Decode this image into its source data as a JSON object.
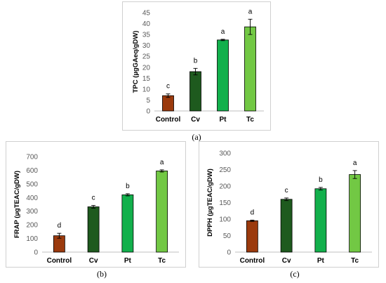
{
  "captions": [
    "(a)",
    "(b)",
    "(c)"
  ],
  "colors": {
    "Control": "#9b3a0d",
    "Cv": "#1e5a1e",
    "Pt": "#12b04c",
    "Tc": "#72c844",
    "bar_edge": "#000000"
  },
  "chart_data": [
    {
      "type": "bar",
      "title": "",
      "xlabel": "",
      "ylabel": "TPC (µgGAeq/gDW)",
      "categories": [
        "Control",
        "Cv",
        "Pt",
        "Tc"
      ],
      "values": [
        7,
        18,
        32.5,
        38.5
      ],
      "errors": [
        0.8,
        1.5,
        0.3,
        3.5
      ],
      "significance": [
        "c",
        "b",
        "a",
        "a"
      ],
      "ylim": [
        0,
        45
      ],
      "yticks": [
        0,
        5,
        10,
        15,
        20,
        25,
        30,
        35,
        40,
        45
      ],
      "grid": false,
      "legend": "none"
    },
    {
      "type": "bar",
      "title": "",
      "xlabel": "",
      "ylabel": "FRAP (µgTEAC/gDW)",
      "categories": [
        "Control",
        "Cv",
        "Pt",
        "Tc"
      ],
      "values": [
        120,
        332,
        420,
        595
      ],
      "errors": [
        18,
        10,
        8,
        8
      ],
      "significance": [
        "d",
        "c",
        "b",
        "a"
      ],
      "ylim": [
        0,
        700
      ],
      "yticks": [
        0,
        100,
        200,
        300,
        400,
        500,
        600,
        700
      ],
      "grid": false,
      "legend": "none"
    },
    {
      "type": "bar",
      "title": "",
      "xlabel": "",
      "ylabel": "DPPH (µgTEAC/gDW)",
      "categories": [
        "Control",
        "Cv",
        "Pt",
        "Tc"
      ],
      "values": [
        95,
        160,
        192,
        235
      ],
      "errors": [
        2,
        4,
        4,
        12
      ],
      "significance": [
        "d",
        "c",
        "b",
        "a"
      ],
      "ylim": [
        0,
        300
      ],
      "yticks": [
        0,
        50,
        100,
        150,
        200,
        250,
        300
      ],
      "grid": false,
      "legend": "none"
    }
  ]
}
